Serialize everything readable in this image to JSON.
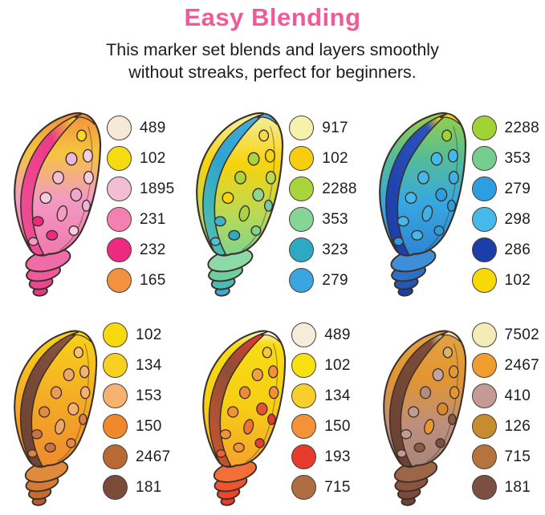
{
  "header": {
    "title": "Easy Blending",
    "subtitle_line1": "This marker set blends and layers smoothly",
    "subtitle_line2": "without streaks, perfect for beginners.",
    "title_color": "#EF5B98",
    "text_color": "#1C1C1E"
  },
  "outline_color": "#3B2F28",
  "panels": [
    {
      "id": "pink-orange-shell",
      "shell": {
        "body_pos": [
          0,
          28,
          60,
          100
        ],
        "body_stops": [
          "#F2913C",
          "#F6C43F",
          "#F29BC4",
          "#F178AC"
        ],
        "stripe_pos": [
          0,
          30,
          100
        ],
        "stripe_stops": [
          "#F6D517",
          "#ED3A88",
          "#EE4E95"
        ],
        "tip": "#F08A3C",
        "whorls": [
          "#F06CA8",
          "#EE5A9C",
          "#E94890",
          "#E43A86"
        ],
        "spots": [
          "#F5D91A",
          "#F6CCE0",
          "#F0B5D6",
          "#F6CCE0",
          "#F3BDD3",
          "#F0A8CE",
          "#F6CCE0",
          "#F49BC2",
          "#F0B5D6",
          "#EC2B80",
          "#F6CCE0",
          "#EC2B80",
          "#F49BC2"
        ]
      },
      "swatches": [
        {
          "code": "489",
          "color": "#F7E9D9"
        },
        {
          "code": "102",
          "color": "#F6DB10"
        },
        {
          "code": "1895",
          "color": "#F3BDD3"
        },
        {
          "code": "231",
          "color": "#F480B1"
        },
        {
          "code": "232",
          "color": "#EC2B80"
        },
        {
          "code": "165",
          "color": "#F2913E"
        }
      ]
    },
    {
      "id": "yellow-green-blue-shell",
      "shell": {
        "body_pos": [
          0,
          35,
          72,
          100
        ],
        "body_stops": [
          "#F4EFA2",
          "#F7D30C",
          "#B8D957",
          "#7FD490"
        ],
        "stripe_pos": [
          0,
          55,
          100
        ],
        "stripe_stops": [
          "#41ABDF",
          "#2FA4CC",
          "#4FBFAE"
        ],
        "tip": "#41ABDF",
        "whorls": [
          "#8ED9A8",
          "#6FCEA0",
          "#4FB8B8",
          "#3FA9C9"
        ],
        "spots": [
          "#F2DB4E",
          "#F5D50E",
          "#A9D43B",
          "#B9DB52",
          "#A9D43B",
          "#8FD48F",
          "#F5D50E",
          "#A9D43B",
          "#6FCBA8",
          "#3FB2C9",
          "#7FD490",
          "#2FA9C3",
          "#4FC0D8"
        ]
      },
      "swatches": [
        {
          "code": "917",
          "color": "#F6F2AC"
        },
        {
          "code": "102",
          "color": "#F8CD0E"
        },
        {
          "code": "2288",
          "color": "#A9D43B"
        },
        {
          "code": "353",
          "color": "#84D596"
        },
        {
          "code": "323",
          "color": "#2EA9C3"
        },
        {
          "code": "279",
          "color": "#3BA4E1"
        }
      ]
    },
    {
      "id": "green-blue-shell",
      "shell": {
        "body_pos": [
          0,
          32,
          62,
          100
        ],
        "body_stops": [
          "#96D145",
          "#54BC9A",
          "#38A8E0",
          "#2D85D4"
        ],
        "stripe_pos": [
          0,
          16,
          100
        ],
        "stripe_stops": [
          "#F2D60A",
          "#2B53BC",
          "#1C3EA9"
        ],
        "tip": "#F2D60A",
        "whorls": [
          "#3E8FD8",
          "#2F6FC8",
          "#2456B4",
          "#1C3EA9"
        ],
        "spots": [
          "#9FD434",
          "#45BAEA",
          "#45BAEA",
          "#3FB0E8",
          "#45BAEA",
          "#2D9FE1",
          "#45BAEA",
          "#3FB0E8",
          "#2D9FE1",
          "#45BAEA",
          "#2D9FE1",
          "#45BAEA",
          "#2D9FE1"
        ]
      },
      "swatches": [
        {
          "code": "2288",
          "color": "#9FD434"
        },
        {
          "code": "353",
          "color": "#74CE8D"
        },
        {
          "code": "279",
          "color": "#2D9FE1"
        },
        {
          "code": "298",
          "color": "#45BAEA"
        },
        {
          "code": "286",
          "color": "#1C3EA9"
        },
        {
          "code": "102",
          "color": "#F9D905"
        }
      ]
    },
    {
      "id": "yellow-orange-brown-shell",
      "shell": {
        "body_pos": [
          0,
          45,
          100
        ],
        "body_stops": [
          "#F7D318",
          "#F5B024",
          "#EF8A2E"
        ],
        "stripe_pos": [
          0,
          50,
          100
        ],
        "stripe_stops": [
          "#8A5742",
          "#7A4A38",
          "#6E4434"
        ],
        "tip": "#F7D318",
        "whorls": [
          "#E08A3C",
          "#D67B36",
          "#C56C32",
          "#B05E2E"
        ],
        "spots": [
          "#F8C172",
          "#F8B26F",
          "#F0A668",
          "#F8B26F",
          "#ED9C55",
          "#F8B26F",
          "#E08A48",
          "#F0A668",
          "#D8824A",
          "#C97343",
          "#E08A48",
          "#C97343",
          "#D8824A"
        ]
      },
      "swatches": [
        {
          "code": "102",
          "color": "#F6D90E"
        },
        {
          "code": "134",
          "color": "#F8D120"
        },
        {
          "code": "153",
          "color": "#F8B26F"
        },
        {
          "code": "150",
          "color": "#F0892C"
        },
        {
          "code": "2467",
          "color": "#B76A34"
        },
        {
          "code": "181",
          "color": "#7B4B39"
        }
      ]
    },
    {
      "id": "yellow-red-shell",
      "shell": {
        "body_pos": [
          0,
          10,
          55,
          100
        ],
        "body_stops": [
          "#FBF2DC",
          "#F7DC12",
          "#F7CE14",
          "#F5A32E"
        ],
        "stripe_pos": [
          0,
          45,
          100
        ],
        "stripe_stops": [
          "#E8392C",
          "#8F4E38",
          "#C2542F"
        ],
        "tip": "#FBF2DC",
        "whorls": [
          "#F07038",
          "#EC5530",
          "#E8452C",
          "#E83A2D"
        ],
        "spots": [
          "#F5C93E",
          "#F49239",
          "#F2A23C",
          "#F49239",
          "#F08A38",
          "#E8502F",
          "#F49239",
          "#F0722F",
          "#E83A2D",
          "#F49239",
          "#E83A2D",
          "#F49239",
          "#F0612F"
        ]
      },
      "swatches": [
        {
          "code": "489",
          "color": "#F7EBDC"
        },
        {
          "code": "102",
          "color": "#F8E013"
        },
        {
          "code": "134",
          "color": "#F7CE2A"
        },
        {
          "code": "150",
          "color": "#F49239"
        },
        {
          "code": "193",
          "color": "#E83A2D"
        },
        {
          "code": "715",
          "color": "#B06C42"
        }
      ]
    },
    {
      "id": "brown-tan-shell",
      "shell": {
        "body_pos": [
          0,
          35,
          70,
          100
        ],
        "body_stops": [
          "#E2A344",
          "#E2952F",
          "#BC8F7E",
          "#AA8578"
        ],
        "stripe_pos": [
          0,
          14,
          100
        ],
        "stripe_stops": [
          "#D9BC8A",
          "#7E4D38",
          "#6B4234"
        ],
        "tip": "#EFDDB2",
        "whorls": [
          "#9C6647",
          "#8A5540",
          "#7B4A3A",
          "#6F4234"
        ],
        "spots": [
          "#D9B469",
          "#E8972E",
          "#C4A49E",
          "#E8972E",
          "#B78A80",
          "#D98A2E",
          "#C49A94",
          "#E8972E",
          "#8A5A42",
          "#C49A94",
          "#7B4F42",
          "#8A5A42",
          "#C49A94"
        ]
      },
      "swatches": [
        {
          "code": "7502",
          "color": "#F4ECB6"
        },
        {
          "code": "2467",
          "color": "#F19D30"
        },
        {
          "code": "410",
          "color": "#C49A94"
        },
        {
          "code": "126",
          "color": "#C78B30"
        },
        {
          "code": "715",
          "color": "#B5733D"
        },
        {
          "code": "181",
          "color": "#7B4F42"
        }
      ]
    }
  ]
}
